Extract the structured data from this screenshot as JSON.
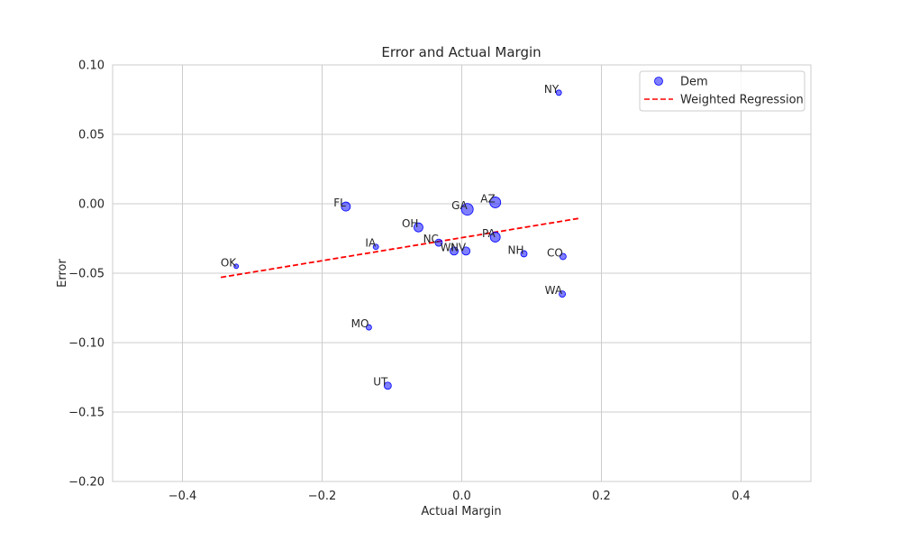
{
  "chart_data": {
    "type": "scatter",
    "title": "Error and Actual Margin",
    "xlabel": "Actual Margin",
    "ylabel": "Error",
    "xlim": [
      -0.5,
      0.5
    ],
    "ylim": [
      -0.2,
      0.1
    ],
    "xticks": [
      -0.4,
      -0.2,
      0.0,
      0.2,
      0.4
    ],
    "xtick_labels": [
      "−0.4",
      "−0.2",
      "0.0",
      "0.2",
      "0.4"
    ],
    "yticks": [
      -0.2,
      -0.15,
      -0.1,
      -0.05,
      0.0,
      0.05,
      0.1
    ],
    "ytick_labels": [
      "−0.20",
      "−0.15",
      "−0.10",
      "−0.05",
      "0.00",
      "0.05",
      "0.10"
    ],
    "grid": true,
    "legend_position": "top-right",
    "series": [
      {
        "name": "Dem",
        "color": "#0000ff",
        "points": [
          {
            "label": "NY",
            "x": 0.139,
            "y": 0.08,
            "size": 3
          },
          {
            "label": "AZ",
            "x": 0.048,
            "y": 0.001,
            "size": 6
          },
          {
            "label": "FL",
            "x": -0.166,
            "y": -0.002,
            "size": 5
          },
          {
            "label": "GA",
            "x": 0.008,
            "y": -0.004,
            "size": 6.5
          },
          {
            "label": "OH",
            "x": -0.062,
            "y": -0.017,
            "size": 5
          },
          {
            "label": "PA",
            "x": 0.048,
            "y": -0.024,
            "size": 5.5
          },
          {
            "label": "NC",
            "x": -0.033,
            "y": -0.028,
            "size": 4
          },
          {
            "label": "IA",
            "x": -0.123,
            "y": -0.031,
            "size": 3
          },
          {
            "label": "WI",
            "x": -0.011,
            "y": -0.034,
            "size": 4.5
          },
          {
            "label": "NV",
            "x": 0.006,
            "y": -0.034,
            "size": 4.5
          },
          {
            "label": "NH",
            "x": 0.089,
            "y": -0.036,
            "size": 3.5
          },
          {
            "label": "CO",
            "x": 0.145,
            "y": -0.038,
            "size": 3.5
          },
          {
            "label": "OK",
            "x": -0.323,
            "y": -0.045,
            "size": 2.5
          },
          {
            "label": "WA",
            "x": 0.144,
            "y": -0.065,
            "size": 3.5
          },
          {
            "label": "MO",
            "x": -0.133,
            "y": -0.089,
            "size": 3
          },
          {
            "label": "UT",
            "x": -0.106,
            "y": -0.131,
            "size": 4
          }
        ]
      },
      {
        "name": "Weighted Regression",
        "color": "#ff0000",
        "style": "dashed",
        "x": [
          -0.345,
          0.168
        ],
        "y": [
          -0.053,
          -0.0105
        ]
      }
    ]
  }
}
